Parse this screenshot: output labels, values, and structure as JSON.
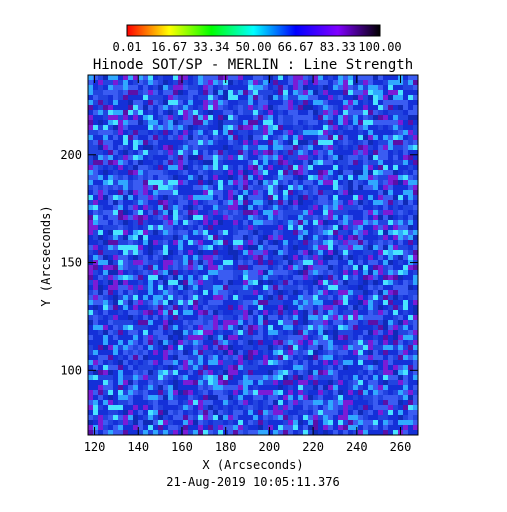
{
  "chart_data": {
    "type": "heatmap",
    "title": "Hinode SOT/SP - MERLIN : Line Strength",
    "xlabel": "X (Arcseconds)",
    "ylabel": "Y (Arcseconds)",
    "xlim": [
      117,
      268
    ],
    "ylim": [
      70,
      237
    ],
    "x_ticks": [
      "120",
      "140",
      "160",
      "180",
      "200",
      "220",
      "240",
      "260"
    ],
    "y_ticks": [
      "100",
      "150",
      "200"
    ],
    "colorbar": {
      "tick_labels": [
        "0.01",
        "16.67",
        "33.34",
        "50.00",
        "66.67",
        "83.33",
        "100.00"
      ],
      "range": [
        0.01,
        100.0
      ],
      "colors": [
        "#ff0000",
        "#ffff00",
        "#00ff00",
        "#00ffff",
        "#0000ff",
        "#8000ff",
        "#000000"
      ]
    },
    "field": {
      "dominant_color": "#2a3fe8",
      "typical_value_range": [
        60,
        85
      ]
    },
    "timestamp": "21-Aug-2019 10:05:11.376"
  }
}
